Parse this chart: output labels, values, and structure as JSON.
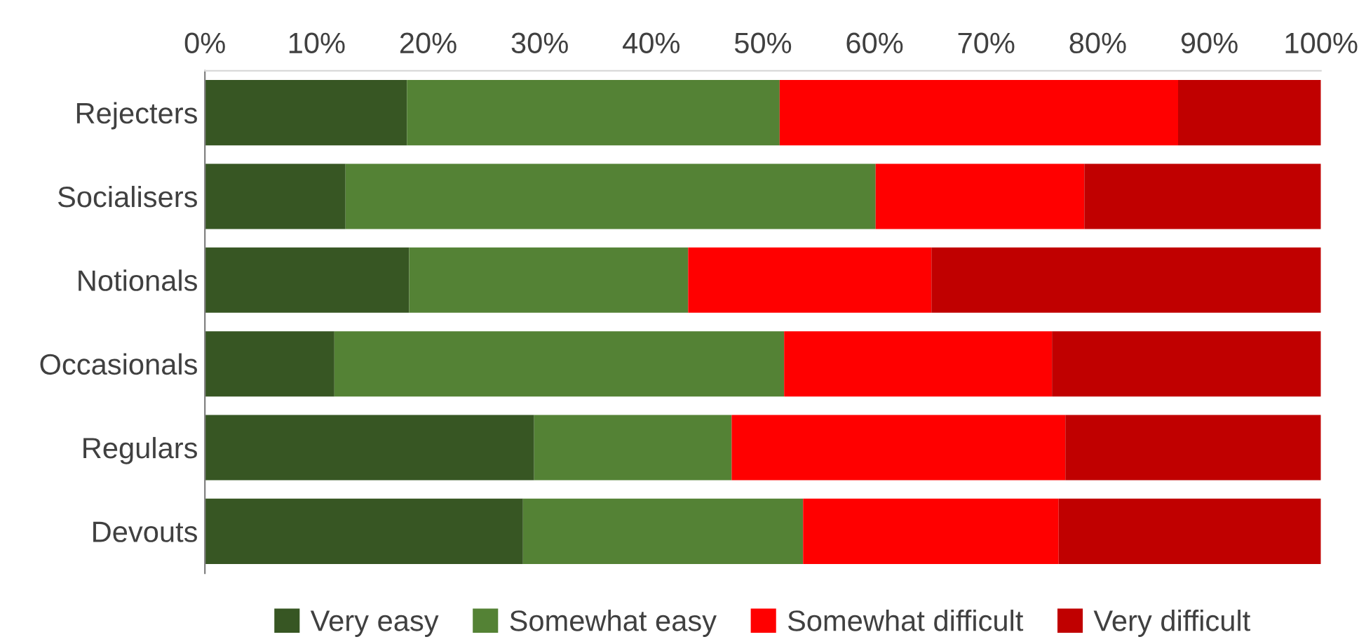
{
  "chart_data": {
    "type": "bar",
    "orientation": "horizontal",
    "stacked": true,
    "categories": [
      "Rejecters",
      "Socialisers",
      "Notionals",
      "Occasionals",
      "Regulars",
      "Devouts"
    ],
    "series": [
      {
        "name": "Very easy",
        "color": "#375623",
        "values": [
          18.1,
          12.6,
          18.3,
          11.6,
          29.5,
          28.5
        ]
      },
      {
        "name": "Somewhat easy",
        "color": "#548235",
        "values": [
          33.4,
          47.5,
          25.0,
          40.3,
          17.7,
          25.1
        ]
      },
      {
        "name": "Somewhat difficult",
        "color": "#ff0000",
        "values": [
          35.7,
          18.7,
          21.8,
          24.0,
          29.9,
          22.9
        ]
      },
      {
        "name": "Very difficult",
        "color": "#c00000",
        "values": [
          12.8,
          21.2,
          34.9,
          24.1,
          22.9,
          23.5
        ]
      }
    ],
    "xlim": [
      0,
      100
    ],
    "xticks": [
      {
        "value": 0,
        "label": "0%"
      },
      {
        "value": 10,
        "label": "10%"
      },
      {
        "value": 20,
        "label": "20%"
      },
      {
        "value": 30,
        "label": "30%"
      },
      {
        "value": 40,
        "label": "40%"
      },
      {
        "value": 50,
        "label": "50%"
      },
      {
        "value": 60,
        "label": "60%"
      },
      {
        "value": 70,
        "label": "70%"
      },
      {
        "value": 80,
        "label": "80%"
      },
      {
        "value": 90,
        "label": "90%"
      },
      {
        "value": 100,
        "label": "100%"
      }
    ],
    "grid": false,
    "legend": "bottom"
  }
}
